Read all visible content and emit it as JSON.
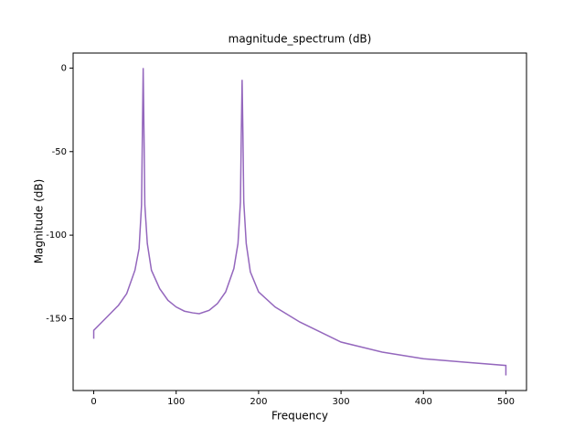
{
  "chart_data": {
    "type": "line",
    "title": "magnitude_spectrum (dB)",
    "xlabel": "Frequency",
    "ylabel": "Magnitude (dB)",
    "x": [
      0,
      0,
      10,
      20,
      30,
      40,
      50,
      55,
      58,
      59,
      60,
      61,
      62,
      65,
      70,
      80,
      90,
      100,
      110,
      120,
      128,
      140,
      150,
      160,
      170,
      175,
      178,
      179,
      180,
      181,
      182,
      185,
      190,
      200,
      220,
      250,
      300,
      350,
      400,
      450,
      500,
      500
    ],
    "series": [
      {
        "name": "magnitude",
        "color": "#9467bd",
        "values": [
          -162,
          -157,
          -152,
          -147,
          -142,
          -135,
          -121,
          -108,
          -82,
          -40,
          0,
          -40,
          -82,
          -105,
          -121,
          -132,
          -139,
          -143,
          -145.5,
          -146.5,
          -147,
          -145,
          -141,
          -134,
          -120,
          -105,
          -80,
          -40,
          -7,
          -40,
          -80,
          -105,
          -122,
          -134,
          -143,
          -152,
          -164,
          -170,
          -174,
          -176,
          -178,
          -184
        ]
      }
    ],
    "xlim": [
      -25,
      525
    ],
    "ylim": [
      -193,
      9
    ],
    "xticks": [
      0,
      100,
      200,
      300,
      400,
      500
    ],
    "yticks": [
      0,
      -50,
      -100,
      -150
    ]
  }
}
